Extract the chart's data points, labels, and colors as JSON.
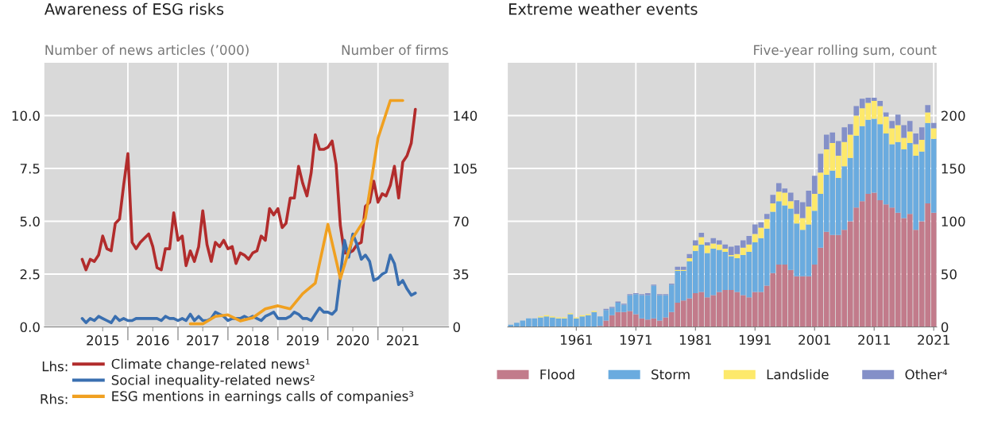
{
  "chart_data": [
    {
      "type": "line",
      "title": "Awareness of ESG risks",
      "ylabel": "Number of news articles (’000)",
      "y2label": "Number of firms",
      "x": [
        "2015-02",
        "2015-03",
        "2015-04",
        "2015-05",
        "2015-06",
        "2015-07",
        "2015-08",
        "2015-09",
        "2015-10",
        "2015-11",
        "2015-12",
        "2016-01",
        "2016-02",
        "2016-03",
        "2016-04",
        "2016-05",
        "2016-06",
        "2016-07",
        "2016-08",
        "2016-09",
        "2016-10",
        "2016-11",
        "2016-12",
        "2017-01",
        "2017-02",
        "2017-03",
        "2017-04",
        "2017-05",
        "2017-06",
        "2017-07",
        "2017-08",
        "2017-09",
        "2017-10",
        "2017-11",
        "2017-12",
        "2018-01",
        "2018-02",
        "2018-03",
        "2018-04",
        "2018-05",
        "2018-06",
        "2018-07",
        "2018-08",
        "2018-09",
        "2018-10",
        "2018-11",
        "2018-12",
        "2019-01",
        "2019-02",
        "2019-03",
        "2019-04",
        "2019-05",
        "2019-06",
        "2019-07",
        "2019-08",
        "2019-09",
        "2019-10",
        "2019-11",
        "2019-12",
        "2020-01",
        "2020-02",
        "2020-03",
        "2020-04",
        "2020-05",
        "2020-06",
        "2020-07",
        "2020-08",
        "2020-09",
        "2020-10",
        "2020-11",
        "2020-12",
        "2021-01",
        "2021-02",
        "2021-03",
        "2021-04",
        "2021-05",
        "2021-06",
        "2021-07",
        "2021-08",
        "2021-09",
        "2021-10"
      ],
      "series": [
        {
          "name": "Climate change-related news¹",
          "color": "#b22c2c",
          "values": [
            3.2,
            2.7,
            3.2,
            3.1,
            3.4,
            4.3,
            3.7,
            3.6,
            4.9,
            5.1,
            6.7,
            8.2,
            4.0,
            3.7,
            4.0,
            4.2,
            4.4,
            3.8,
            2.8,
            2.7,
            3.7,
            3.7,
            5.4,
            4.1,
            4.3,
            2.9,
            3.6,
            3.1,
            3.8,
            5.5,
            3.9,
            3.1,
            4.0,
            3.8,
            4.1,
            3.7,
            3.8,
            3.0,
            3.5,
            3.4,
            3.2,
            3.5,
            3.6,
            4.3,
            4.1,
            5.6,
            5.3,
            5.6,
            4.7,
            4.9,
            6.1,
            6.1,
            7.6,
            6.8,
            6.2,
            7.3,
            9.1,
            8.4,
            8.4,
            8.5,
            8.8,
            7.7,
            4.8,
            3.5,
            3.5,
            3.6,
            3.9,
            4.0,
            5.7,
            5.9,
            6.9,
            5.9,
            6.3,
            6.2,
            6.7,
            7.6,
            6.1,
            7.8,
            8.1,
            8.7,
            10.3
          ]
        },
        {
          "name": "Social inequality-related news²",
          "color": "#3a6fb0",
          "values": [
            0.4,
            0.2,
            0.4,
            0.3,
            0.5,
            0.4,
            0.3,
            0.2,
            0.5,
            0.3,
            0.4,
            0.3,
            0.3,
            0.4,
            0.4,
            0.4,
            0.4,
            0.4,
            0.4,
            0.3,
            0.5,
            0.4,
            0.4,
            0.3,
            0.4,
            0.3,
            0.6,
            0.3,
            0.5,
            0.3,
            0.3,
            0.4,
            0.7,
            0.6,
            0.5,
            0.3,
            0.4,
            0.4,
            0.4,
            0.5,
            0.4,
            0.5,
            0.4,
            0.3,
            0.5,
            0.6,
            0.7,
            0.4,
            0.4,
            0.4,
            0.5,
            0.7,
            0.6,
            0.4,
            0.4,
            0.3,
            0.6,
            0.9,
            0.7,
            0.7,
            0.6,
            0.8,
            2.4,
            4.1,
            3.3,
            4.4,
            3.9,
            3.2,
            3.4,
            3.1,
            2.2,
            2.3,
            2.5,
            2.6,
            3.4,
            3.0,
            2.0,
            2.2,
            1.8,
            1.5,
            1.6
          ]
        },
        {
          "name": "ESG mentions in earnings calls of companies³",
          "color": "#f0a020",
          "axis": "y2",
          "x": [
            "2017-04",
            "2017-07",
            "2017-10",
            "2018-01",
            "2018-04",
            "2018-07",
            "2018-10",
            "2019-01",
            "2019-04",
            "2019-07",
            "2019-10",
            "2020-01",
            "2020-04",
            "2020-07",
            "2020-10",
            "2021-01",
            "2021-04",
            "2021-07"
          ],
          "values": [
            2,
            2,
            7,
            8,
            4,
            6,
            12,
            14,
            12,
            22,
            29,
            68,
            32,
            59,
            72,
            125,
            150,
            150
          ]
        }
      ],
      "xlim": [
        "2014-05",
        "2022-06"
      ],
      "xticks": [
        {
          "value": "2015-07",
          "label": "2015"
        },
        {
          "value": "2016-07",
          "label": "2016"
        },
        {
          "value": "2017-07",
          "label": "2017"
        },
        {
          "value": "2018-07",
          "label": "2018"
        },
        {
          "value": "2019-07",
          "label": "2019"
        },
        {
          "value": "2020-07",
          "label": "2020"
        },
        {
          "value": "2021-07",
          "label": "2021"
        },
        {
          "value": "2016-01",
          "label": null
        },
        {
          "value": "2017-01",
          "label": null
        },
        {
          "value": "2018-01",
          "label": null
        },
        {
          "value": "2019-01",
          "label": null
        },
        {
          "value": "2020-01",
          "label": null
        },
        {
          "value": "2021-01",
          "label": null
        }
      ],
      "ylim": [
        0,
        12.5
      ],
      "yticks": [
        {
          "value": 0,
          "label": "0.0"
        },
        {
          "value": 2.5,
          "label": "2.5"
        },
        {
          "value": 5,
          "label": "5.0"
        },
        {
          "value": 7.5,
          "label": "7.5"
        },
        {
          "value": 10,
          "label": "10.0"
        }
      ],
      "y2lim": [
        0,
        175
      ],
      "y2ticks": [
        0,
        35,
        70,
        105,
        140
      ],
      "annotations": [
        "Lhs:",
        "Rhs:"
      ],
      "grid": true,
      "legend": "bottom",
      "line_style": "solid"
    },
    {
      "type": "bar",
      "stacked": true,
      "title": "Extreme weather events",
      "ylabel": "Five-year rolling sum, count",
      "x": [
        1950,
        1951,
        1952,
        1953,
        1954,
        1955,
        1956,
        1957,
        1958,
        1959,
        1960,
        1961,
        1962,
        1963,
        1964,
        1965,
        1966,
        1967,
        1968,
        1969,
        1970,
        1971,
        1972,
        1973,
        1974,
        1975,
        1976,
        1977,
        1978,
        1979,
        1980,
        1981,
        1982,
        1983,
        1984,
        1985,
        1986,
        1987,
        1988,
        1989,
        1990,
        1991,
        1992,
        1993,
        1994,
        1995,
        1996,
        1997,
        1998,
        1999,
        2000,
        2001,
        2002,
        2003,
        2004,
        2005,
        2006,
        2007,
        2008,
        2009,
        2010,
        2011,
        2012,
        2013,
        2014,
        2015,
        2016,
        2017,
        2018,
        2019,
        2020,
        2021
      ],
      "series": [
        {
          "name": "Flood",
          "color": "#c27b8b",
          "values": [
            0,
            0,
            0,
            0,
            0,
            0,
            0,
            0,
            0,
            0,
            0,
            0,
            0,
            0,
            0,
            1,
            6,
            11,
            14,
            14,
            15,
            12,
            8,
            7,
            8,
            6,
            9,
            14,
            23,
            25,
            27,
            32,
            33,
            28,
            30,
            33,
            35,
            35,
            33,
            30,
            28,
            33,
            33,
            39,
            51,
            59,
            59,
            54,
            48,
            48,
            48,
            59,
            75,
            90,
            87,
            87,
            92,
            100,
            113,
            119,
            126,
            127,
            120,
            116,
            113,
            108,
            103,
            107,
            92,
            100,
            117,
            108
          ]
        },
        {
          "name": "Storm",
          "color": "#6aabdf",
          "values": [
            2,
            4,
            6,
            8,
            8,
            9,
            10,
            9,
            8,
            8,
            12,
            8,
            10,
            11,
            14,
            9,
            10,
            7,
            9,
            7,
            15,
            19,
            22,
            23,
            31,
            24,
            21,
            26,
            30,
            28,
            35,
            40,
            45,
            42,
            44,
            40,
            36,
            32,
            32,
            38,
            43,
            47,
            51,
            54,
            58,
            60,
            56,
            58,
            50,
            44,
            49,
            51,
            51,
            54,
            61,
            54,
            60,
            60,
            68,
            71,
            70,
            70,
            72,
            67,
            60,
            67,
            65,
            67,
            70,
            66,
            76,
            70
          ]
        },
        {
          "name": "Landslide",
          "color": "#fde96b",
          "values": [
            0,
            0,
            0,
            0,
            0,
            1,
            1,
            1,
            1,
            1,
            1,
            1,
            1,
            1,
            1,
            0,
            0,
            0,
            0,
            0,
            0,
            0,
            0,
            0,
            0,
            0,
            0,
            0,
            1,
            1,
            3,
            5,
            7,
            7,
            5,
            5,
            3,
            1,
            4,
            7,
            7,
            8,
            10,
            9,
            8,
            9,
            12,
            7,
            9,
            11,
            17,
            16,
            20,
            24,
            26,
            21,
            23,
            22,
            19,
            17,
            16,
            17,
            17,
            16,
            15,
            16,
            11,
            11,
            11,
            11,
            10,
            10
          ]
        },
        {
          "name": "Other⁴",
          "color": "#8490c8",
          "values": [
            0,
            0,
            0,
            0,
            0,
            0,
            0,
            0,
            0,
            0,
            0,
            0,
            0,
            0,
            0,
            0,
            1,
            1,
            1,
            1,
            1,
            1,
            1,
            2,
            1,
            1,
            1,
            1,
            3,
            3,
            4,
            5,
            4,
            3,
            5,
            4,
            4,
            8,
            8,
            7,
            8,
            9,
            5,
            5,
            8,
            8,
            4,
            8,
            13,
            15,
            15,
            17,
            18,
            14,
            10,
            14,
            14,
            10,
            9,
            9,
            5,
            3,
            5,
            4,
            7,
            10,
            12,
            10,
            10,
            12,
            7,
            5
          ]
        }
      ],
      "xlim": [
        1949.5,
        2021.5
      ],
      "xticks": [
        1961,
        1971,
        1981,
        1991,
        2001,
        2011,
        2021
      ],
      "ylim": [
        0,
        250
      ],
      "yticks": [
        0,
        50,
        100,
        150,
        200
      ],
      "grid": true,
      "legend": "bottom"
    }
  ]
}
